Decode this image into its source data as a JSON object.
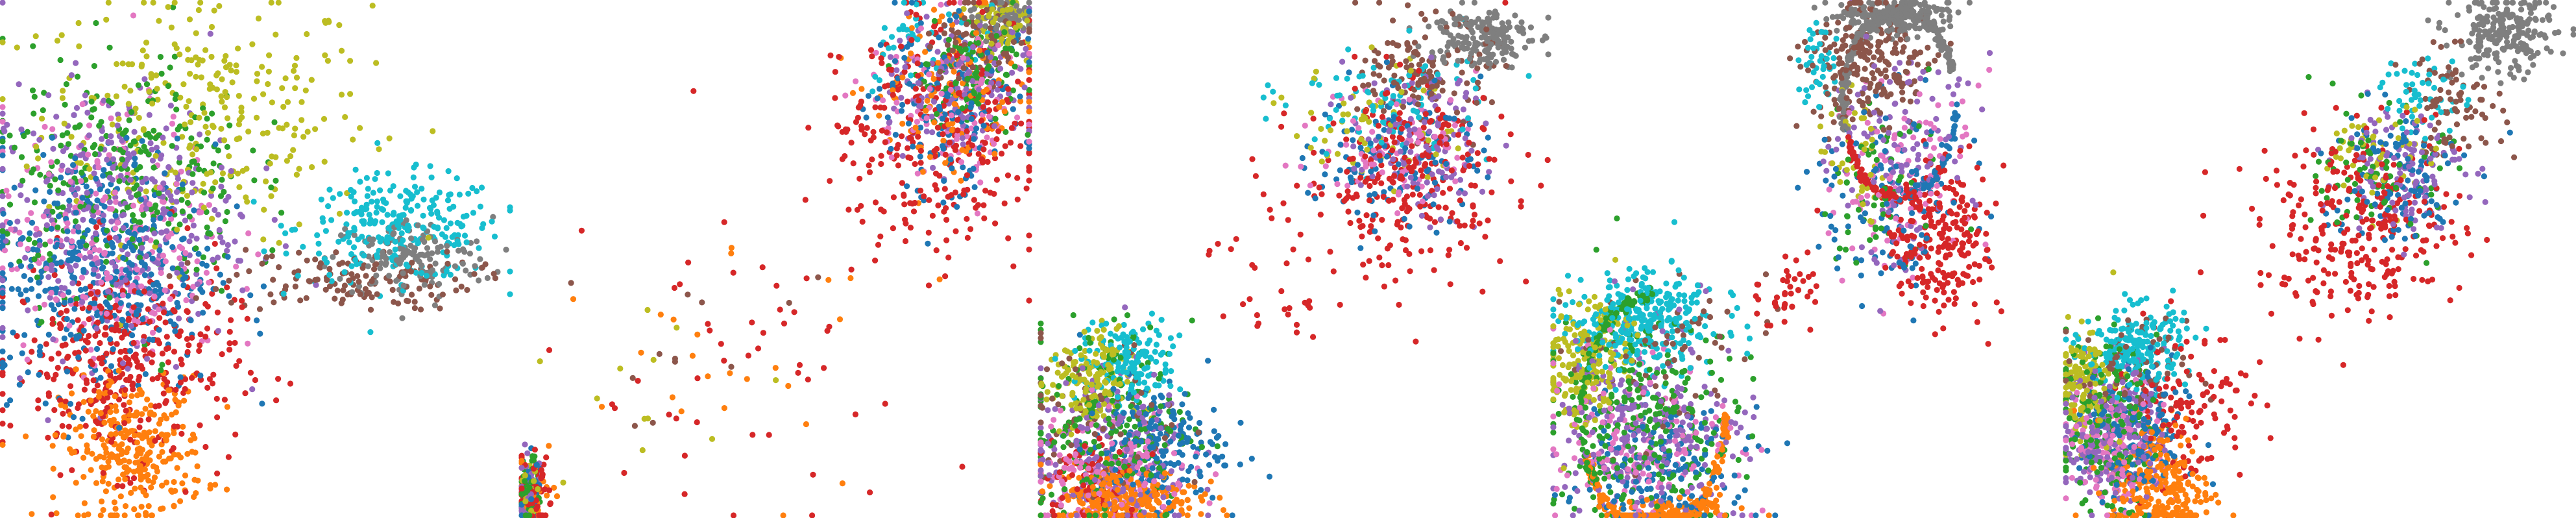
{
  "colors": {
    "c0": "#1f77b4",
    "c1": "#ff7f0e",
    "c2": "#2ca02c",
    "c3": "#d62728",
    "c4": "#9467bd",
    "c5": "#8c564b",
    "c6": "#e377c2",
    "c7": "#7f7f7f",
    "c8": "#bcbd22",
    "c9": "#17becf"
  },
  "chart_data": [
    {
      "type": "scatter",
      "title": "",
      "axes": "off",
      "xlim": [
        0,
        1
      ],
      "ylim": [
        0,
        1
      ],
      "clusters": [
        {
          "color": "c8",
          "cx": 0.4,
          "cy": 0.78,
          "sx": 0.16,
          "sy": 0.12,
          "n": 280
        },
        {
          "color": "c9",
          "cx": 0.78,
          "cy": 0.56,
          "sx": 0.1,
          "sy": 0.05,
          "n": 260
        },
        {
          "color": "c7",
          "cx": 0.8,
          "cy": 0.5,
          "sx": 0.08,
          "sy": 0.04,
          "n": 140
        },
        {
          "color": "c5",
          "cx": 0.68,
          "cy": 0.46,
          "sx": 0.12,
          "sy": 0.03,
          "n": 140
        },
        {
          "color": "c1",
          "cx": 0.26,
          "cy": 0.13,
          "sx": 0.07,
          "sy": 0.07,
          "n": 300
        },
        {
          "color": "c3",
          "cx": 0.24,
          "cy": 0.3,
          "sx": 0.11,
          "sy": 0.1,
          "n": 380
        },
        {
          "color": "c0",
          "cx": 0.2,
          "cy": 0.48,
          "sx": 0.11,
          "sy": 0.12,
          "n": 420
        },
        {
          "color": "c4",
          "cx": 0.22,
          "cy": 0.58,
          "sx": 0.12,
          "sy": 0.13,
          "n": 360
        },
        {
          "color": "c6",
          "cx": 0.22,
          "cy": 0.54,
          "sx": 0.11,
          "sy": 0.12,
          "n": 240
        },
        {
          "color": "c2",
          "cx": 0.24,
          "cy": 0.66,
          "sx": 0.12,
          "sy": 0.12,
          "n": 280
        }
      ]
    },
    {
      "type": "scatter",
      "title": "",
      "axes": "off",
      "xlim": [
        0,
        1
      ],
      "ylim": [
        0,
        1
      ],
      "clusters": [
        {
          "color": "c8",
          "cx": 0.94,
          "cy": 0.96,
          "sx": 0.03,
          "sy": 0.03,
          "n": 80
        },
        {
          "color": "c7",
          "cx": 0.95,
          "cy": 0.97,
          "sx": 0.03,
          "sy": 0.02,
          "n": 60
        },
        {
          "color": "c5",
          "cx": 0.9,
          "cy": 0.92,
          "sx": 0.05,
          "sy": 0.04,
          "n": 80
        },
        {
          "color": "c9",
          "cx": 0.78,
          "cy": 0.92,
          "sx": 0.08,
          "sy": 0.05,
          "n": 40
        },
        {
          "color": "c3",
          "cx": 0.82,
          "cy": 0.74,
          "sx": 0.1,
          "sy": 0.11,
          "n": 300
        },
        {
          "color": "c0",
          "cx": 0.84,
          "cy": 0.8,
          "sx": 0.08,
          "sy": 0.09,
          "n": 160
        },
        {
          "color": "c4",
          "cx": 0.86,
          "cy": 0.84,
          "sx": 0.07,
          "sy": 0.07,
          "n": 140
        },
        {
          "color": "c6",
          "cx": 0.84,
          "cy": 0.8,
          "sx": 0.08,
          "sy": 0.08,
          "n": 100
        },
        {
          "color": "c2",
          "cx": 0.88,
          "cy": 0.86,
          "sx": 0.06,
          "sy": 0.06,
          "n": 120
        },
        {
          "color": "c1",
          "cx": 0.84,
          "cy": 0.82,
          "sx": 0.08,
          "sy": 0.08,
          "n": 120
        },
        {
          "color": "c3",
          "cx": 0.4,
          "cy": 0.3,
          "sx": 0.16,
          "sy": 0.16,
          "n": 50
        },
        {
          "color": "c1",
          "cx": 0.42,
          "cy": 0.32,
          "sx": 0.16,
          "sy": 0.14,
          "n": 24
        },
        {
          "color": "c8",
          "cx": 0.3,
          "cy": 0.24,
          "sx": 0.12,
          "sy": 0.1,
          "n": 12
        },
        {
          "color": "c5",
          "cx": 0.44,
          "cy": 0.4,
          "sx": 0.12,
          "sy": 0.12,
          "n": 12
        },
        {
          "color": "c3",
          "cx": 0.03,
          "cy": 0.05,
          "sx": 0.02,
          "sy": 0.04,
          "n": 60
        },
        {
          "color": "c2",
          "cx": 0.02,
          "cy": 0.05,
          "sx": 0.01,
          "sy": 0.04,
          "n": 40
        },
        {
          "color": "c4",
          "cx": 0.02,
          "cy": 0.05,
          "sx": 0.01,
          "sy": 0.04,
          "n": 40
        },
        {
          "color": "c0",
          "cx": 0.02,
          "cy": 0.05,
          "sx": 0.01,
          "sy": 0.04,
          "n": 30
        },
        {
          "color": "c1",
          "cx": 0.03,
          "cy": 0.04,
          "sx": 0.02,
          "sy": 0.03,
          "n": 30
        },
        {
          "color": "c8",
          "cx": 0.02,
          "cy": 0.05,
          "sx": 0.01,
          "sy": 0.03,
          "n": 20
        }
      ]
    },
    {
      "type": "scatter",
      "title": "",
      "axes": "off",
      "xlim": [
        0,
        1
      ],
      "ylim": [
        0,
        1
      ],
      "clusters": [
        {
          "color": "c7",
          "cx": 0.86,
          "cy": 0.93,
          "sx": 0.05,
          "sy": 0.03,
          "n": 180
        },
        {
          "color": "c5",
          "cx": 0.76,
          "cy": 0.86,
          "sx": 0.06,
          "sy": 0.05,
          "n": 140
        },
        {
          "color": "c9",
          "cx": 0.68,
          "cy": 0.8,
          "sx": 0.1,
          "sy": 0.06,
          "n": 80
        },
        {
          "color": "c3",
          "cx": 0.72,
          "cy": 0.66,
          "sx": 0.1,
          "sy": 0.09,
          "n": 260
        },
        {
          "color": "c4",
          "cx": 0.74,
          "cy": 0.72,
          "sx": 0.07,
          "sy": 0.07,
          "n": 120
        },
        {
          "color": "c0",
          "cx": 0.7,
          "cy": 0.7,
          "sx": 0.08,
          "sy": 0.07,
          "n": 120
        },
        {
          "color": "c6",
          "cx": 0.7,
          "cy": 0.72,
          "sx": 0.08,
          "sy": 0.06,
          "n": 80
        },
        {
          "color": "c8",
          "cx": 0.66,
          "cy": 0.76,
          "sx": 0.08,
          "sy": 0.06,
          "n": 60
        },
        {
          "color": "c3",
          "cx": 0.5,
          "cy": 0.48,
          "sx": 0.1,
          "sy": 0.08,
          "n": 40
        },
        {
          "color": "c9",
          "cx": 0.18,
          "cy": 0.3,
          "sx": 0.05,
          "sy": 0.04,
          "n": 150
        },
        {
          "color": "c8",
          "cx": 0.1,
          "cy": 0.26,
          "sx": 0.04,
          "sy": 0.05,
          "n": 150
        },
        {
          "color": "c2",
          "cx": 0.14,
          "cy": 0.18,
          "sx": 0.08,
          "sy": 0.1,
          "n": 220
        },
        {
          "color": "c1",
          "cx": 0.17,
          "cy": 0.04,
          "sx": 0.07,
          "sy": 0.03,
          "n": 250
        },
        {
          "color": "c0",
          "cx": 0.22,
          "cy": 0.14,
          "sx": 0.07,
          "sy": 0.06,
          "n": 200
        },
        {
          "color": "c4",
          "cx": 0.14,
          "cy": 0.12,
          "sx": 0.08,
          "sy": 0.08,
          "n": 200
        },
        {
          "color": "c6",
          "cx": 0.14,
          "cy": 0.1,
          "sx": 0.08,
          "sy": 0.06,
          "n": 150
        },
        {
          "color": "c3",
          "cx": 0.1,
          "cy": 0.08,
          "sx": 0.05,
          "sy": 0.05,
          "n": 80
        },
        {
          "color": "c5",
          "cx": 0.12,
          "cy": 0.18,
          "sx": 0.08,
          "sy": 0.08,
          "n": 80
        }
      ]
    },
    {
      "type": "scatter",
      "title": "",
      "axes": "off",
      "xlim": [
        0,
        1
      ],
      "ylim": [
        0,
        1
      ],
      "clusters": [
        {
          "color": "c7",
          "cx": 0.66,
          "cy": 0.97,
          "sx": 0.06,
          "sy": 0.02,
          "n": 200
        },
        {
          "color": "c5",
          "cx": 0.62,
          "cy": 0.88,
          "sx": 0.06,
          "sy": 0.06,
          "n": 220
        },
        {
          "color": "c9",
          "cx": 0.52,
          "cy": 0.88,
          "sx": 0.02,
          "sy": 0.04,
          "n": 40
        },
        {
          "color": "c3",
          "cx": 0.76,
          "cy": 0.54,
          "sx": 0.05,
          "sy": 0.07,
          "n": 240
        },
        {
          "color": "c4",
          "cx": 0.68,
          "cy": 0.7,
          "sx": 0.07,
          "sy": 0.1,
          "n": 130
        },
        {
          "color": "c6",
          "cx": 0.68,
          "cy": 0.66,
          "sx": 0.07,
          "sy": 0.1,
          "n": 110
        },
        {
          "color": "c0",
          "cx": 0.66,
          "cy": 0.62,
          "sx": 0.07,
          "sy": 0.09,
          "n": 110
        },
        {
          "color": "c8",
          "cx": 0.6,
          "cy": 0.7,
          "sx": 0.04,
          "sy": 0.08,
          "n": 40
        },
        {
          "color": "c2",
          "cx": 0.64,
          "cy": 0.64,
          "sx": 0.07,
          "sy": 0.09,
          "n": 60
        },
        {
          "color": "c3",
          "cx": 0.46,
          "cy": 0.44,
          "sx": 0.04,
          "sy": 0.04,
          "n": 40
        },
        {
          "color": "c9",
          "cx": 0.18,
          "cy": 0.38,
          "sx": 0.07,
          "sy": 0.05,
          "n": 300
        },
        {
          "color": "c8",
          "cx": 0.07,
          "cy": 0.3,
          "sx": 0.04,
          "sy": 0.06,
          "n": 180
        },
        {
          "color": "c2",
          "cx": 0.18,
          "cy": 0.2,
          "sx": 0.09,
          "sy": 0.1,
          "n": 260
        },
        {
          "color": "c4",
          "cx": 0.19,
          "cy": 0.17,
          "sx": 0.09,
          "sy": 0.1,
          "n": 260
        },
        {
          "color": "c0",
          "cx": 0.22,
          "cy": 0.1,
          "sx": 0.08,
          "sy": 0.06,
          "n": 160
        },
        {
          "color": "c6",
          "cx": 0.18,
          "cy": 0.14,
          "sx": 0.09,
          "sy": 0.08,
          "n": 140
        },
        {
          "color": "c5",
          "cx": 0.22,
          "cy": 0.3,
          "sx": 0.08,
          "sy": 0.08,
          "n": 70
        },
        {
          "color": "c1",
          "cx": 0.26,
          "cy": 0.02,
          "sx": 0.06,
          "sy": 0.01,
          "n": 60
        }
      ],
      "rings": [
        {
          "color": "c7",
          "cx": 0.68,
          "cy": 0.8,
          "rx": 0.11,
          "ry": 0.18,
          "from": 0.05,
          "to": 0.55,
          "n": 220
        },
        {
          "color": "c1",
          "cx": 0.2,
          "cy": 0.2,
          "rx": 0.14,
          "ry": 0.23,
          "from": 0.55,
          "to": 1.0,
          "n": 200
        },
        {
          "color": "c2",
          "cx": 0.2,
          "cy": 0.2,
          "rx": 0.14,
          "ry": 0.23,
          "from": 0.25,
          "to": 0.6,
          "n": 120
        },
        {
          "color": "c0",
          "cx": 0.68,
          "cy": 0.8,
          "rx": 0.11,
          "ry": 0.18,
          "from": 0.75,
          "to": 1.0,
          "n": 60
        },
        {
          "color": "c3",
          "cx": 0.68,
          "cy": 0.8,
          "rx": 0.11,
          "ry": 0.18,
          "from": 0.55,
          "to": 0.8,
          "n": 80
        }
      ]
    },
    {
      "type": "scatter",
      "title": "",
      "axes": "off",
      "xlim": [
        0,
        1
      ],
      "ylim": [
        0,
        1
      ],
      "clusters": [
        {
          "color": "c7",
          "cx": 0.86,
          "cy": 0.93,
          "sx": 0.05,
          "sy": 0.04,
          "n": 220
        },
        {
          "color": "c5",
          "cx": 0.76,
          "cy": 0.8,
          "sx": 0.05,
          "sy": 0.05,
          "n": 80
        },
        {
          "color": "c9",
          "cx": 0.7,
          "cy": 0.82,
          "sx": 0.04,
          "sy": 0.04,
          "n": 50
        },
        {
          "color": "c3",
          "cx": 0.58,
          "cy": 0.56,
          "sx": 0.1,
          "sy": 0.09,
          "n": 280
        },
        {
          "color": "c4",
          "cx": 0.66,
          "cy": 0.68,
          "sx": 0.06,
          "sy": 0.06,
          "n": 120
        },
        {
          "color": "c0",
          "cx": 0.64,
          "cy": 0.66,
          "sx": 0.07,
          "sy": 0.07,
          "n": 110
        },
        {
          "color": "c8",
          "cx": 0.62,
          "cy": 0.7,
          "sx": 0.05,
          "sy": 0.05,
          "n": 50
        },
        {
          "color": "c2",
          "cx": 0.62,
          "cy": 0.66,
          "sx": 0.06,
          "sy": 0.06,
          "n": 80
        },
        {
          "color": "c9",
          "cx": 0.14,
          "cy": 0.33,
          "sx": 0.05,
          "sy": 0.04,
          "n": 200
        },
        {
          "color": "c8",
          "cx": 0.04,
          "cy": 0.26,
          "sx": 0.03,
          "sy": 0.05,
          "n": 140
        },
        {
          "color": "c2",
          "cx": 0.08,
          "cy": 0.18,
          "sx": 0.05,
          "sy": 0.08,
          "n": 180
        },
        {
          "color": "c4",
          "cx": 0.1,
          "cy": 0.16,
          "sx": 0.05,
          "sy": 0.07,
          "n": 200
        },
        {
          "color": "c6",
          "cx": 0.1,
          "cy": 0.14,
          "sx": 0.05,
          "sy": 0.06,
          "n": 150
        },
        {
          "color": "c0",
          "cx": 0.14,
          "cy": 0.16,
          "sx": 0.05,
          "sy": 0.07,
          "n": 180
        },
        {
          "color": "c5",
          "cx": 0.12,
          "cy": 0.28,
          "sx": 0.06,
          "sy": 0.05,
          "n": 80
        },
        {
          "color": "c1",
          "cx": 0.19,
          "cy": 0.06,
          "sx": 0.05,
          "sy": 0.07,
          "n": 260
        },
        {
          "color": "c3",
          "cx": 0.24,
          "cy": 0.22,
          "sx": 0.06,
          "sy": 0.08,
          "n": 120
        }
      ]
    }
  ]
}
